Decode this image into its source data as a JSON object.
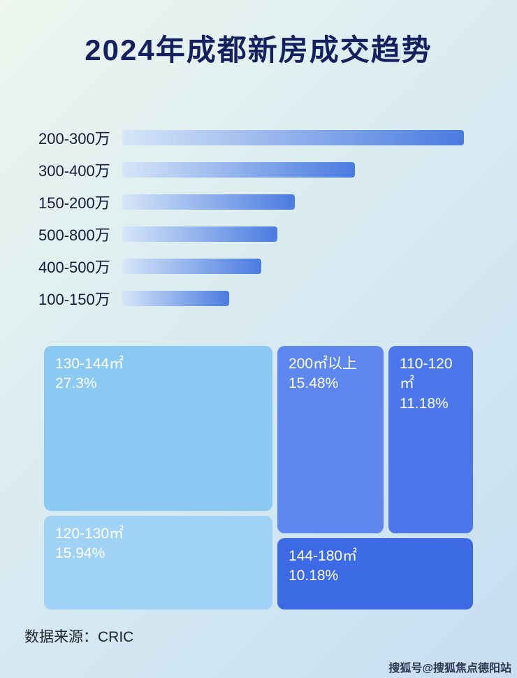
{
  "title": "2024年成都新房成交趋势",
  "chart_data": [
    {
      "type": "bar",
      "orientation": "horizontal",
      "categories": [
        "200-300万",
        "300-400万",
        "150-200万",
        "500-800万",
        "400-500万",
        "100-150万"
      ],
      "values": [
        485,
        330,
        245,
        220,
        197,
        152
      ],
      "max_value": 485,
      "value_note": "relative bar lengths; no numeric axis shown in image",
      "bar_gradient": [
        "#d6e6f8",
        "#4a7be0"
      ],
      "grid": "off",
      "legend": "none"
    },
    {
      "type": "treemap",
      "items": [
        {
          "label": "130-144㎡",
          "value": 27.3,
          "value_label": "27.3%",
          "color": "#8ac9f2"
        },
        {
          "label": "200㎡以上",
          "value": 15.48,
          "value_label": "15.48%",
          "color": "#5d87ee"
        },
        {
          "label": "110-120㎡",
          "value": 11.18,
          "value_label": "11.18%",
          "color": "#4b77ea"
        },
        {
          "label": "120-130㎡",
          "value": 15.94,
          "value_label": "15.94%",
          "color": "#9fd2f5"
        },
        {
          "label": "144-180㎡",
          "value": 10.18,
          "value_label": "10.18%",
          "color": "#3c69e4"
        }
      ]
    }
  ],
  "footer": {
    "source": "数据来源：CRIC"
  },
  "watermark": "搜狐号@搜狐焦点德阳站",
  "colors": {
    "title": "#14215e",
    "bar_label": "#131c3a",
    "background_start": "#eef6ee",
    "background_end": "#c8def0",
    "treemap_text": "#ffffff"
  }
}
